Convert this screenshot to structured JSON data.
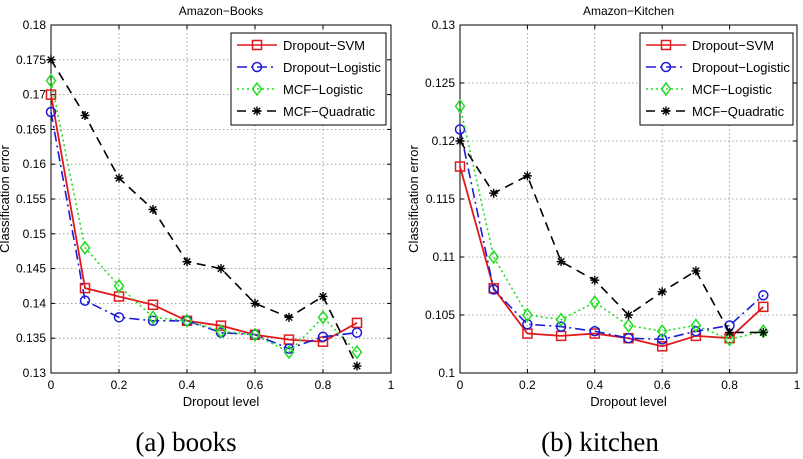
{
  "chart_data": [
    {
      "type": "line",
      "title": "Amazon−Books",
      "caption": "(a) books",
      "xlabel": "Dropout level",
      "ylabel": "Classification error",
      "xlim": [
        0,
        1
      ],
      "ylim": [
        0.13,
        0.18
      ],
      "grid": true,
      "legend_position": "top-right",
      "x_ticks": [
        0,
        0.2,
        0.4,
        0.6,
        0.8,
        1
      ],
      "x_tick_labels": [
        "0",
        "0.2",
        "0.4",
        "0.6",
        "0.8",
        "1"
      ],
      "y_ticks": [
        0.13,
        0.135,
        0.14,
        0.145,
        0.15,
        0.155,
        0.16,
        0.165,
        0.17,
        0.175,
        0.18
      ],
      "y_tick_labels": [
        "0.13",
        "0.135",
        "0.14",
        "0.145",
        "0.15",
        "0.155",
        "0.16",
        "0.165",
        "0.17",
        "0.175",
        "0.18"
      ],
      "x": [
        0,
        0.1,
        0.2,
        0.3,
        0.4,
        0.5,
        0.6,
        0.7,
        0.8,
        0.9
      ],
      "series": [
        {
          "name": "Dropout−SVM",
          "color": "#e0191b",
          "dash": "solid",
          "marker": "square",
          "values": [
            0.17,
            0.1422,
            0.141,
            0.1398,
            0.1375,
            0.1368,
            0.1355,
            0.1348,
            0.1345,
            0.1372
          ]
        },
        {
          "name": "Dropout−Logistic",
          "color": "#1c1cd6",
          "dash": "dashdot",
          "marker": "circle",
          "values": [
            0.1675,
            0.1404,
            0.138,
            0.1375,
            0.1375,
            0.1358,
            0.1355,
            0.1335,
            0.1352,
            0.1358
          ]
        },
        {
          "name": "MCF−Logistic",
          "color": "#22dd22",
          "dash": "dotted",
          "marker": "diamond",
          "values": [
            0.172,
            0.148,
            0.1425,
            0.138,
            0.1375,
            0.136,
            0.1355,
            0.133,
            0.138,
            0.133
          ]
        },
        {
          "name": "MCF−Quadratic",
          "color": "#000000",
          "dash": "dashed",
          "marker": "star",
          "values": [
            0.175,
            0.167,
            0.158,
            0.1535,
            0.146,
            0.145,
            0.14,
            0.138,
            0.141,
            0.131
          ]
        }
      ]
    },
    {
      "type": "line",
      "title": "Amazon−Kitchen",
      "caption": "(b) kitchen",
      "xlabel": "Dropout level",
      "ylabel": "Classification error",
      "xlim": [
        0,
        1
      ],
      "ylim": [
        0.1,
        0.13
      ],
      "grid": true,
      "legend_position": "top-right",
      "x_ticks": [
        0,
        0.2,
        0.4,
        0.6,
        0.8,
        1
      ],
      "x_tick_labels": [
        "0",
        "0.2",
        "0.4",
        "0.6",
        "0.8",
        "1"
      ],
      "y_ticks": [
        0.1,
        0.105,
        0.11,
        0.115,
        0.12,
        0.125,
        0.13
      ],
      "y_tick_labels": [
        "0.1",
        "0.105",
        "0.11",
        "0.115",
        "0.12",
        "0.125",
        "0.13"
      ],
      "x": [
        0,
        0.1,
        0.2,
        0.3,
        0.4,
        0.5,
        0.6,
        0.7,
        0.8,
        0.9
      ],
      "series": [
        {
          "name": "Dropout−SVM",
          "color": "#e0191b",
          "dash": "solid",
          "marker": "square",
          "values": [
            0.1178,
            0.1073,
            0.1034,
            0.1032,
            0.1034,
            0.103,
            0.1023,
            0.1032,
            0.103,
            0.1057
          ]
        },
        {
          "name": "Dropout−Logistic",
          "color": "#1c1cd6",
          "dash": "dashdot",
          "marker": "circle",
          "values": [
            0.121,
            0.1072,
            0.1042,
            0.104,
            0.1036,
            0.103,
            0.1029,
            0.1036,
            0.1041,
            0.1067
          ]
        },
        {
          "name": "MCF−Logistic",
          "color": "#22dd22",
          "dash": "dotted",
          "marker": "diamond",
          "values": [
            0.123,
            0.11,
            0.105,
            0.1046,
            0.1061,
            0.1041,
            0.1036,
            0.1041,
            0.1029,
            0.1036
          ]
        },
        {
          "name": "MCF−Quadratic",
          "color": "#000000",
          "dash": "dashed",
          "marker": "star",
          "values": [
            0.12,
            0.1155,
            0.117,
            0.1096,
            0.108,
            0.105,
            0.107,
            0.1088,
            0.1035,
            0.1035
          ]
        }
      ]
    }
  ]
}
